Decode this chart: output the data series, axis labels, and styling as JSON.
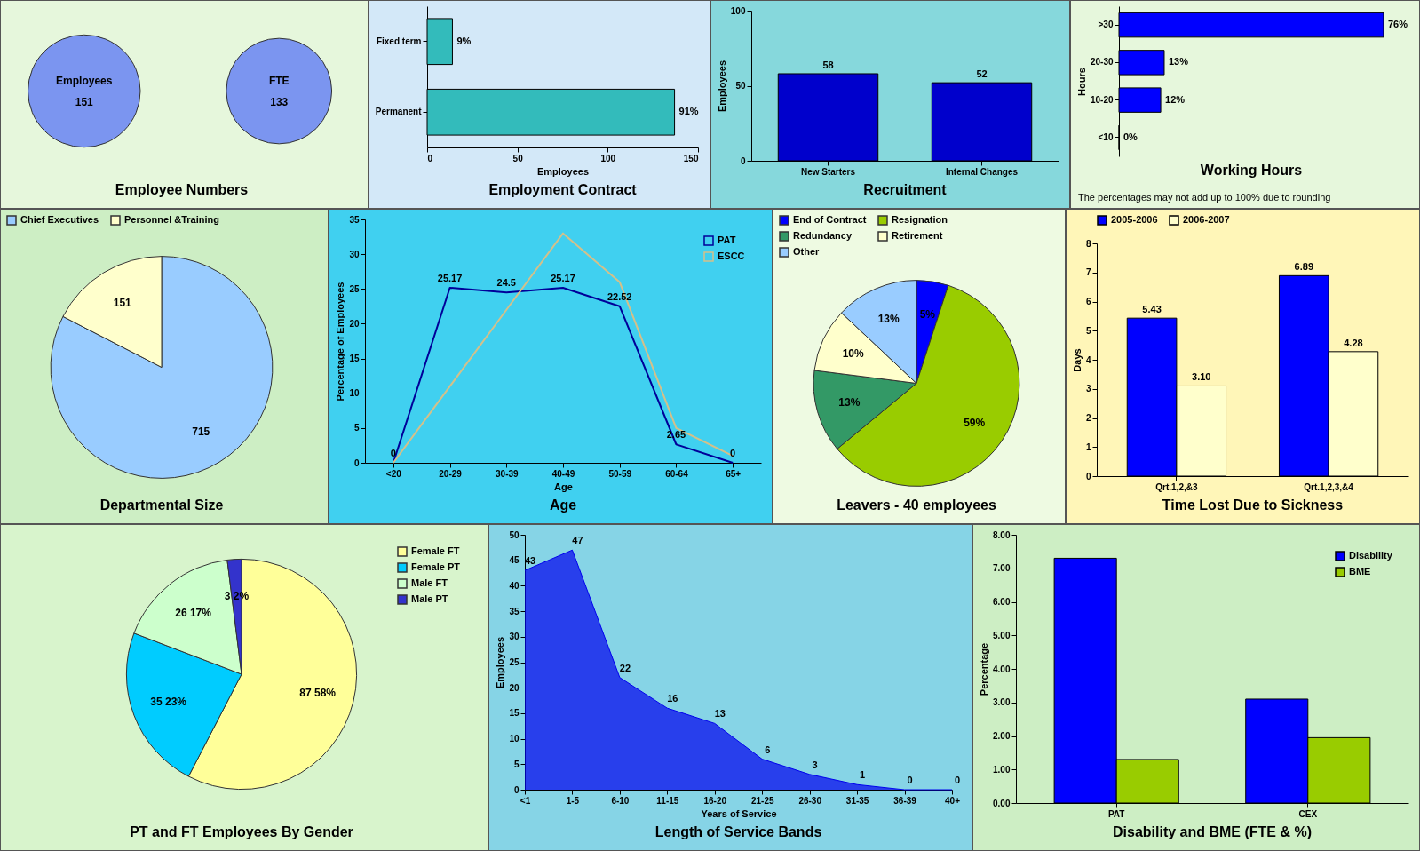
{
  "chart_data": [
    {
      "type": "other",
      "title": "Employee Numbers",
      "categories": [
        "Employees",
        "FTE"
      ],
      "values": [
        151,
        133
      ],
      "data_labels": true,
      "color": "#7b95f0"
    },
    {
      "type": "bar",
      "orientation": "horizontal",
      "title": "Employment Contract",
      "categories": [
        "Fixed term",
        "Permanent"
      ],
      "values": [
        14,
        137
      ],
      "annotations": [
        {
          "text": "9%",
          "x": 14,
          "y": "Fixed term"
        },
        {
          "text": "91%",
          "x": 137,
          "y": "Permanent"
        }
      ],
      "color": "#33bbbb",
      "xlabel": "Employees",
      "xlim": [
        0,
        150
      ],
      "xticks": [
        0,
        50,
        100,
        150
      ]
    },
    {
      "type": "bar",
      "title": "Recruitment",
      "categories": [
        "New Starters",
        "Internal Changes"
      ],
      "values": [
        58,
        52
      ],
      "data_labels": true,
      "color": "#0000cc",
      "ylabel": "Employees",
      "ylim": [
        0,
        100
      ],
      "yticks": [
        0,
        50,
        100
      ]
    },
    {
      "type": "bar",
      "orientation": "horizontal",
      "title": "Working Hours",
      "categories": [
        ">30",
        "20-30",
        "10-20",
        "<10"
      ],
      "values": [
        76,
        13,
        12,
        0
      ],
      "value_labels": [
        "76%",
        "13%",
        "12%",
        "0%"
      ],
      "color": "#0000ff",
      "ylabel": "Hours",
      "annotations": [
        "The percentages may not add up to 100% due to rounding"
      ]
    },
    {
      "type": "pie",
      "title": "Departmental Size",
      "categories": [
        "Chief Executives",
        "Personnel &Training"
      ],
      "values": [
        715,
        151
      ],
      "colors": [
        "#99ccff",
        "#ffffcc"
      ],
      "data_labels": true,
      "legend": "top"
    },
    {
      "type": "line",
      "title": "Age",
      "xlabel": "Age",
      "ylabel": "Percentage of Employees",
      "categories": [
        "<20",
        "20-29",
        "30-39",
        "40-49",
        "50-59",
        "60-64",
        "65+"
      ],
      "ylim": [
        0,
        35
      ],
      "yticks": [
        0,
        5,
        10,
        15,
        20,
        25,
        30,
        35
      ],
      "legend": "top right",
      "series": [
        {
          "name": "PAT",
          "color": "#000099",
          "values": [
            0,
            25.17,
            24.5,
            25.17,
            22.52,
            2.65,
            0
          ],
          "value_labels": [
            "0",
            "25.17",
            "24.5",
            "25.17",
            "22.52",
            "2.65",
            "0"
          ]
        },
        {
          "name": "ESCC",
          "color": "#d4c08a",
          "values": [
            0,
            11,
            22,
            33,
            26,
            5,
            1
          ]
        }
      ]
    },
    {
      "type": "pie",
      "title": "Leavers - 40 employees",
      "categories": [
        "End of Contract",
        "Resignation",
        "Redundancy",
        "Retirement",
        "Other"
      ],
      "values": [
        5,
        59,
        13,
        10,
        13
      ],
      "value_labels": [
        "5%",
        "59%",
        "13%",
        "10%",
        "13%"
      ],
      "colors": [
        "#0000ff",
        "#99cc00",
        "#339966",
        "#ffffcc",
        "#99ccff"
      ],
      "legend": "top"
    },
    {
      "type": "bar",
      "title": "Time Lost Due to Sickness",
      "categories": [
        "Qrt.1,2,&3",
        "Qrt.1,2,3,&4"
      ],
      "ylabel": "Days",
      "ylim": [
        0,
        8
      ],
      "yticks": [
        0,
        1,
        2,
        3,
        4,
        5,
        6,
        7,
        8
      ],
      "legend": "top",
      "series": [
        {
          "name": "2005-2006",
          "color": "#0000ff",
          "values": [
            5.43,
            6.89
          ],
          "value_labels": [
            "5.43",
            "6.89"
          ]
        },
        {
          "name": "2006-2007",
          "color": "#ffffcc",
          "values": [
            3.1,
            4.28
          ],
          "value_labels": [
            "3.10",
            "4.28"
          ]
        }
      ]
    },
    {
      "type": "pie",
      "title": "PT and FT Employees By Gender",
      "categories": [
        "Female FT",
        "Female PT",
        "Male FT",
        "Male PT"
      ],
      "values": [
        87,
        35,
        26,
        3
      ],
      "value_labels": [
        "87  58%",
        "35  23%",
        "26  17%",
        "3  2%"
      ],
      "colors": [
        "#ffff99",
        "#00ccff",
        "#ccffcc",
        "#3333cc"
      ],
      "legend": "top right"
    },
    {
      "type": "area",
      "title": "Length of Service Bands",
      "xlabel": "Years of Service",
      "ylabel": "Employees",
      "categories": [
        "<1",
        "1-5",
        "6-10",
        "11-15",
        "16-20",
        "21-25",
        "26-30",
        "31-35",
        "36-39",
        "40+"
      ],
      "values": [
        43,
        47,
        22,
        16,
        13,
        6,
        3,
        1,
        0,
        0
      ],
      "data_labels": true,
      "color": "#0000ee",
      "ylim": [
        0,
        50
      ],
      "yticks": [
        0,
        5,
        10,
        15,
        20,
        25,
        30,
        35,
        40,
        45,
        50
      ]
    },
    {
      "type": "bar",
      "title": "Disability and BME (FTE & %)",
      "categories": [
        "PAT",
        "CEX"
      ],
      "ylabel": "Percentage",
      "ylim": [
        0,
        8
      ],
      "yticks": [
        {
          "value": 0,
          "label": "0.00"
        },
        {
          "value": 1,
          "label": "1.00"
        },
        {
          "value": 2,
          "label": "2.00"
        },
        {
          "value": 3,
          "label": "3.00"
        },
        {
          "value": 4,
          "label": "4.00"
        },
        {
          "value": 5,
          "label": "5.00"
        },
        {
          "value": 6,
          "label": "6.00"
        },
        {
          "value": 7,
          "label": "7.00"
        },
        {
          "value": 8,
          "label": "8.00"
        }
      ],
      "legend": "top right",
      "series": [
        {
          "name": "Disability",
          "color": "#0000ff",
          "values": [
            7.3,
            3.1
          ]
        },
        {
          "name": "BME",
          "color": "#99cc00",
          "values": [
            1.3,
            1.95
          ]
        }
      ]
    }
  ]
}
